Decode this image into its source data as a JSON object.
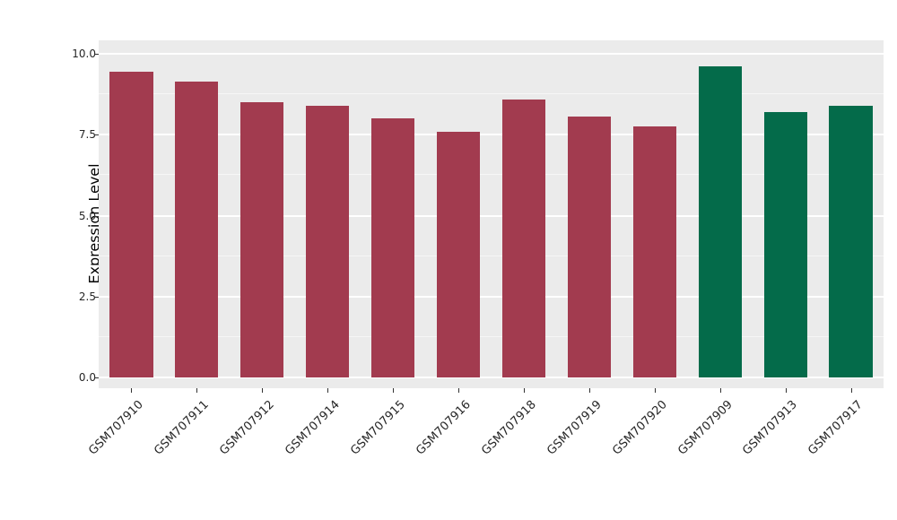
{
  "chart_data": {
    "type": "bar",
    "title": "",
    "xlabel": "",
    "ylabel": "Expression Level",
    "categories": [
      "GSM707910",
      "GSM707911",
      "GSM707912",
      "GSM707914",
      "GSM707915",
      "GSM707916",
      "GSM707918",
      "GSM707919",
      "GSM707920",
      "GSM707909",
      "GSM707913",
      "GSM707917"
    ],
    "values": [
      9.45,
      9.15,
      8.5,
      8.4,
      8.0,
      7.6,
      8.6,
      8.05,
      7.75,
      9.6,
      8.2,
      8.4
    ],
    "bar_colors": [
      "#A23B4F",
      "#A23B4F",
      "#A23B4F",
      "#A23B4F",
      "#A23B4F",
      "#A23B4F",
      "#A23B4F",
      "#A23B4F",
      "#A23B4F",
      "#046B4A",
      "#046B4A",
      "#046B4A"
    ],
    "groups": [
      "red",
      "red",
      "red",
      "red",
      "red",
      "red",
      "red",
      "red",
      "red",
      "green",
      "green",
      "green"
    ],
    "ylim": [
      0,
      10
    ],
    "yticks": [
      0.0,
      2.5,
      5.0,
      7.5,
      10.0
    ],
    "ytick_labels": [
      "0.0",
      "2.5",
      "5.0",
      "7.5",
      "10.0"
    ],
    "minor_ticks": [
      1.25,
      3.75,
      6.25,
      8.75
    ],
    "grid": true,
    "legend_position": "none",
    "panel_background": "#EBEBEB",
    "gridline_color": "#FFFFFF",
    "colors": {
      "group_red": "#A23B4F",
      "group_green": "#046B4A"
    }
  }
}
